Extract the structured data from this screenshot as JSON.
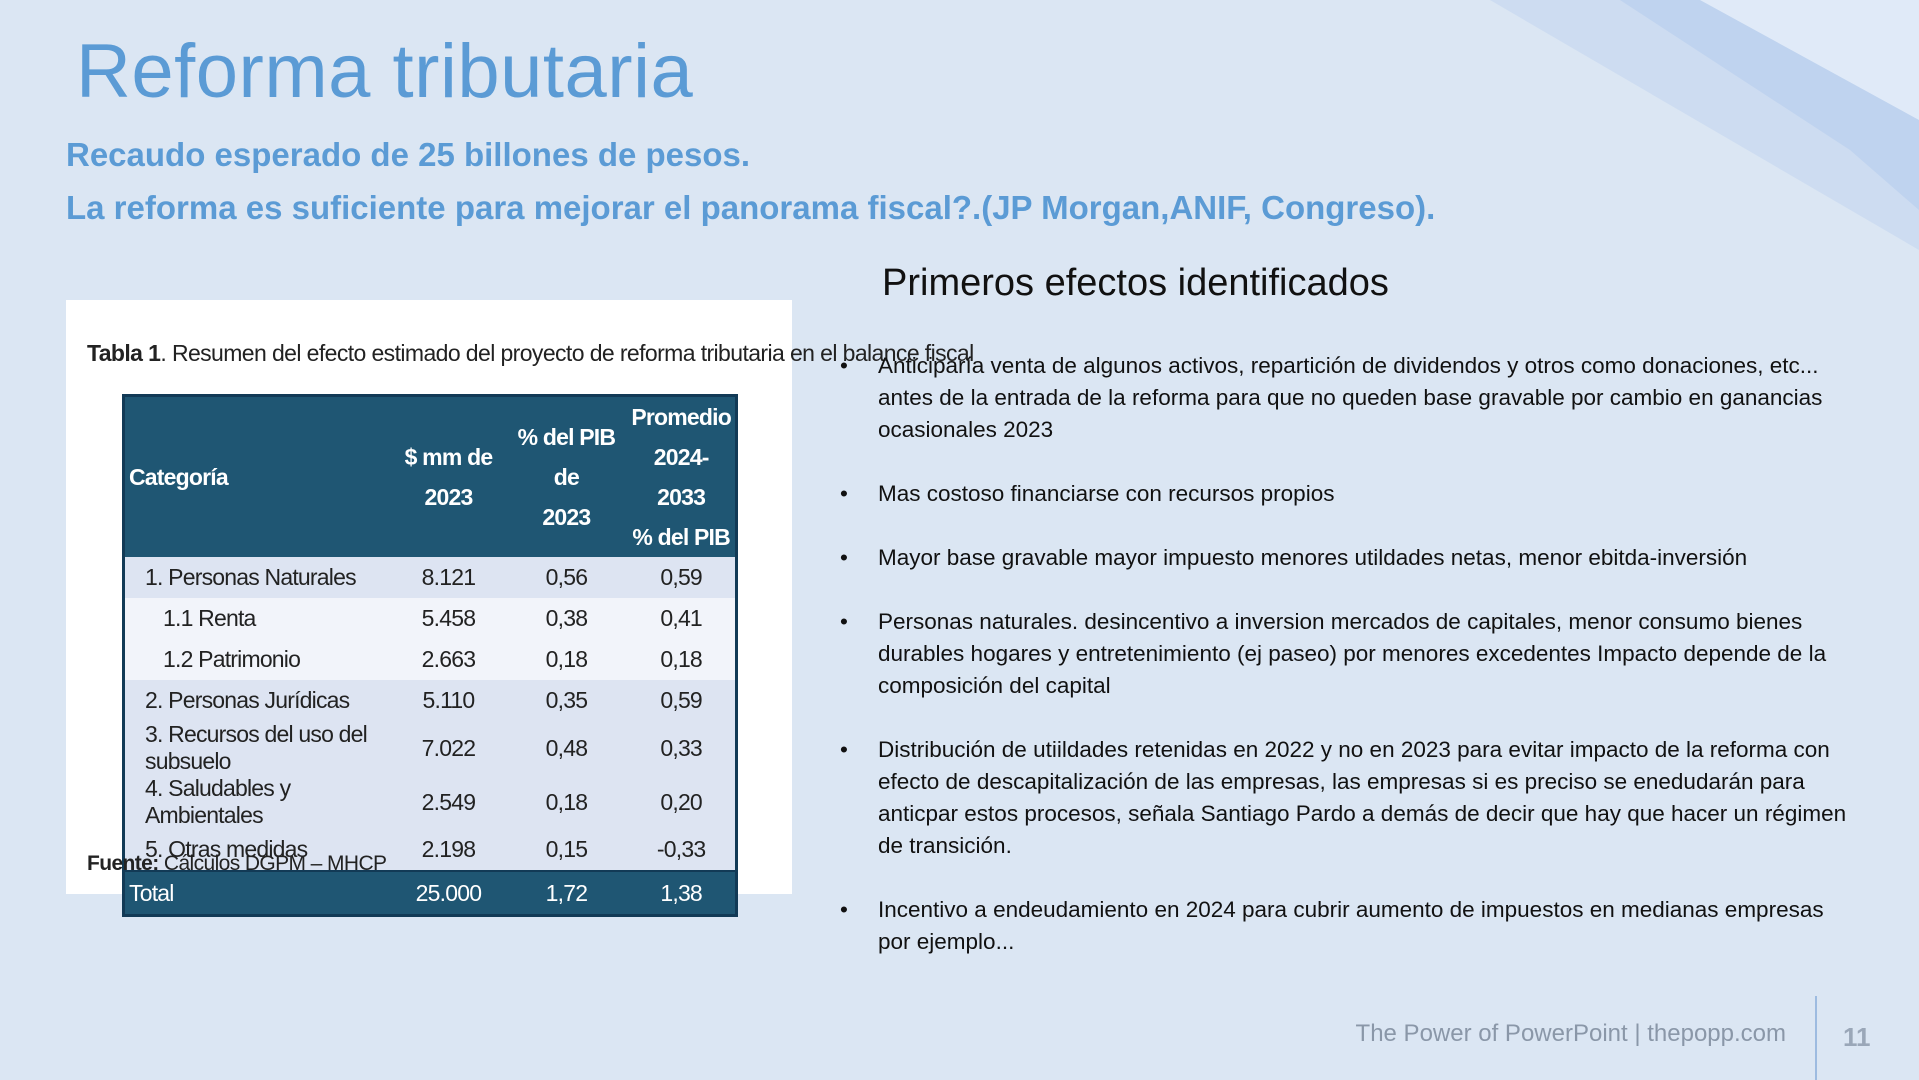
{
  "slide": {
    "title": "Reforma tributaria",
    "subtitle_line1": "Recaudo esperado de 25 billones de pesos.",
    "subtitle_line2": "La reforma es suficiente para mejorar el panorama fiscal?.(JP Morgan,ANIF, Congreso).",
    "page_number": "11",
    "footer": "The Power of PowerPoint | thepopp.com"
  },
  "table": {
    "caption_bold": "Tabla 1",
    "caption_text": ". Resumen del efecto estimado del proyecto de reforma tributaria en el balance fiscal",
    "headers": {
      "category": "Categoría",
      "mm_line1": "$ mm de",
      "mm_line2": "2023",
      "pib_line1": "% del PIB de",
      "pib_line2": "2023",
      "prom_line1": "Promedio",
      "prom_line2": "2024-2033",
      "prom_line3": "% del PIB"
    },
    "rows": [
      {
        "category": "1. Personas Naturales",
        "mm": "8.121",
        "pib": "0,56",
        "prom": "0,59"
      },
      {
        "category": "1.1 Renta",
        "mm": "5.458",
        "pib": "0,38",
        "prom": "0,41"
      },
      {
        "category": "1.2 Patrimonio",
        "mm": "2.663",
        "pib": "0,18",
        "prom": "0,18"
      },
      {
        "category": "2. Personas Jurídicas",
        "mm": "5.110",
        "pib": "0,35",
        "prom": "0,59"
      },
      {
        "category": "3. Recursos del uso del subsuelo",
        "mm": "7.022",
        "pib": "0,48",
        "prom": "0,33"
      },
      {
        "category": "4. Saludables y Ambientales",
        "mm": "2.549",
        "pib": "0,18",
        "prom": "0,20"
      },
      {
        "category": "5. Otras medidas",
        "mm": "2.198",
        "pib": "0,15",
        "prom": "-0,33"
      }
    ],
    "total": {
      "category": "Total",
      "mm": "25.000",
      "pib": "1,72",
      "prom": "1,38"
    },
    "source_bold": "Fuente:",
    "source_text": " Cálculos DGPM – MHCP"
  },
  "effects": {
    "heading": "Primeros efectos identificados",
    "bullet_glyph": "•",
    "items": [
      "Anticiparía venta de algunos activos, repartición de dividendos y otros como donaciones, etc... antes de la entrada de la reforma para que no queden base gravable por cambio en ganancias ocasionales 2023",
      "Mas costoso financiarse con recursos propios",
      "Mayor base gravable mayor impuesto menores utildades netas, menor ebitda-inversión",
      "Personas naturales. desincentivo a inversion mercados de capitales, menor consumo bienes durables hogares y entretenimiento (ej paseo) por menores excedentes Impacto depende de la composición del capital",
      "Distribución de utiildades retenidas en 2022 y no en 2023 para evitar impacto de la reforma con efecto de descapitalización de las empresas, las empresas si es preciso se enedudarán para anticpar estos procesos, señala  Santiago Pardo a demás de decir que hay que hacer un régimen de transición.",
      "Incentivo a endeudamiento en 2024 para cubrir aumento de impuestos en medianas empresas por ejemplo..."
    ]
  },
  "colors": {
    "background": "#dbe6f3",
    "accent": "#5b9bd5",
    "table_header": "#1f5673"
  }
}
